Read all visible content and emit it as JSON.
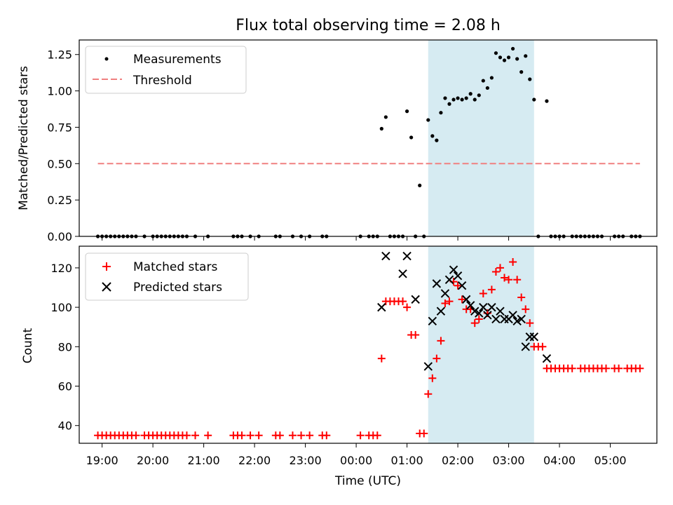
{
  "title": "Flux total observing time = 2.08 h",
  "chart_data": [
    {
      "type": "scatter",
      "ylabel": "Matched/Predicted stars",
      "xlim": [
        "18:33",
        "05:55"
      ],
      "ylim": [
        0,
        1.35
      ],
      "yticks": [
        "0.00",
        "0.25",
        "0.50",
        "0.75",
        "1.00",
        "1.25"
      ],
      "legend_position": "top-left",
      "shaded_interval": {
        "start": "01:25",
        "end": "03:30",
        "color": "#add8e6"
      },
      "series": [
        {
          "name": "Measurements",
          "color": "#000000",
          "marker": "dot",
          "points": [
            [
              "18:55",
              0
            ],
            [
              "19:00",
              0
            ],
            [
              "19:05",
              0
            ],
            [
              "19:10",
              0
            ],
            [
              "19:15",
              0
            ],
            [
              "19:20",
              0
            ],
            [
              "19:25",
              0
            ],
            [
              "19:30",
              0
            ],
            [
              "19:35",
              0
            ],
            [
              "19:40",
              0
            ],
            [
              "19:50",
              0
            ],
            [
              "20:00",
              0
            ],
            [
              "20:05",
              0
            ],
            [
              "20:10",
              0
            ],
            [
              "20:15",
              0
            ],
            [
              "20:20",
              0
            ],
            [
              "20:25",
              0
            ],
            [
              "20:30",
              0
            ],
            [
              "20:35",
              0
            ],
            [
              "20:40",
              0
            ],
            [
              "20:50",
              0
            ],
            [
              "21:05",
              0
            ],
            [
              "21:35",
              0
            ],
            [
              "21:40",
              0
            ],
            [
              "21:45",
              0
            ],
            [
              "21:55",
              0
            ],
            [
              "22:05",
              0
            ],
            [
              "22:25",
              0
            ],
            [
              "22:30",
              0
            ],
            [
              "22:45",
              0
            ],
            [
              "22:55",
              0
            ],
            [
              "23:05",
              0
            ],
            [
              "23:20",
              0
            ],
            [
              "23:25",
              0
            ],
            [
              "00:05",
              0
            ],
            [
              "00:15",
              0
            ],
            [
              "00:20",
              0
            ],
            [
              "00:25",
              0
            ],
            [
              "00:30",
              0.74
            ],
            [
              "00:35",
              0.82
            ],
            [
              "00:40",
              0
            ],
            [
              "00:45",
              0
            ],
            [
              "00:50",
              0
            ],
            [
              "00:55",
              0
            ],
            [
              "01:00",
              0.86
            ],
            [
              "01:05",
              0.68
            ],
            [
              "01:10",
              0
            ],
            [
              "01:15",
              0.35
            ],
            [
              "01:20",
              0
            ],
            [
              "01:25",
              0.8
            ],
            [
              "01:30",
              0.69
            ],
            [
              "01:35",
              0.66
            ],
            [
              "01:40",
              0.85
            ],
            [
              "01:45",
              0.95
            ],
            [
              "01:50",
              0.91
            ],
            [
              "01:55",
              0.94
            ],
            [
              "02:00",
              0.95
            ],
            [
              "02:05",
              0.94
            ],
            [
              "02:10",
              0.95
            ],
            [
              "02:15",
              0.98
            ],
            [
              "02:20",
              0.94
            ],
            [
              "02:25",
              0.97
            ],
            [
              "02:30",
              1.07
            ],
            [
              "02:35",
              1.02
            ],
            [
              "02:40",
              1.09
            ],
            [
              "02:45",
              1.26
            ],
            [
              "02:50",
              1.23
            ],
            [
              "02:55",
              1.21
            ],
            [
              "03:00",
              1.23
            ],
            [
              "03:05",
              1.29
            ],
            [
              "03:10",
              1.22
            ],
            [
              "03:15",
              1.13
            ],
            [
              "03:20",
              1.24
            ],
            [
              "03:25",
              1.08
            ],
            [
              "03:30",
              0.94
            ],
            [
              "03:35",
              0
            ],
            [
              "03:45",
              0.93
            ],
            [
              "03:50",
              0
            ],
            [
              "03:55",
              0
            ],
            [
              "04:00",
              0
            ],
            [
              "04:05",
              0
            ],
            [
              "04:15",
              0
            ],
            [
              "04:20",
              0
            ],
            [
              "04:25",
              0
            ],
            [
              "04:30",
              0
            ],
            [
              "04:35",
              0
            ],
            [
              "04:40",
              0
            ],
            [
              "04:45",
              0
            ],
            [
              "04:50",
              0
            ],
            [
              "05:05",
              0
            ],
            [
              "05:10",
              0
            ],
            [
              "05:15",
              0
            ],
            [
              "05:25",
              0
            ],
            [
              "05:30",
              0
            ],
            [
              "05:35",
              0
            ]
          ]
        },
        {
          "name": "Threshold",
          "color": "#f08080",
          "style": "dashed",
          "points": [
            [
              "18:55",
              0.5
            ],
            [
              "05:35",
              0.5
            ]
          ]
        }
      ]
    },
    {
      "type": "scatter",
      "xlabel": "Time (UTC)",
      "ylabel": "Count",
      "xticks": [
        "19:00",
        "20:00",
        "21:00",
        "22:00",
        "23:00",
        "00:00",
        "01:00",
        "02:00",
        "03:00",
        "04:00",
        "05:00"
      ],
      "xlim": [
        "18:33",
        "05:55"
      ],
      "ylim": [
        31,
        131
      ],
      "yticks": [
        "40",
        "60",
        "80",
        "100",
        "120"
      ],
      "legend_position": "top-left",
      "shaded_interval": {
        "start": "01:25",
        "end": "03:30",
        "color": "#add8e6"
      },
      "series": [
        {
          "name": "Matched stars",
          "color": "#ff0000",
          "marker": "plus",
          "points": [
            [
              "18:55",
              35
            ],
            [
              "19:00",
              35
            ],
            [
              "19:05",
              35
            ],
            [
              "19:10",
              35
            ],
            [
              "19:15",
              35
            ],
            [
              "19:20",
              35
            ],
            [
              "19:25",
              35
            ],
            [
              "19:30",
              35
            ],
            [
              "19:35",
              35
            ],
            [
              "19:40",
              35
            ],
            [
              "19:50",
              35
            ],
            [
              "19:55",
              35
            ],
            [
              "20:00",
              35
            ],
            [
              "20:05",
              35
            ],
            [
              "20:10",
              35
            ],
            [
              "20:15",
              35
            ],
            [
              "20:20",
              35
            ],
            [
              "20:25",
              35
            ],
            [
              "20:30",
              35
            ],
            [
              "20:35",
              35
            ],
            [
              "20:40",
              35
            ],
            [
              "20:50",
              35
            ],
            [
              "21:05",
              35
            ],
            [
              "21:35",
              35
            ],
            [
              "21:40",
              35
            ],
            [
              "21:45",
              35
            ],
            [
              "21:55",
              35
            ],
            [
              "22:05",
              35
            ],
            [
              "22:25",
              35
            ],
            [
              "22:30",
              35
            ],
            [
              "22:45",
              35
            ],
            [
              "22:55",
              35
            ],
            [
              "23:05",
              35
            ],
            [
              "23:20",
              35
            ],
            [
              "23:25",
              35
            ],
            [
              "00:05",
              35
            ],
            [
              "00:15",
              35
            ],
            [
              "00:20",
              35
            ],
            [
              "00:25",
              35
            ],
            [
              "00:30",
              74
            ],
            [
              "00:35",
              103
            ],
            [
              "00:40",
              103
            ],
            [
              "00:45",
              103
            ],
            [
              "00:50",
              103
            ],
            [
              "00:55",
              103
            ],
            [
              "01:00",
              100
            ],
            [
              "01:05",
              86
            ],
            [
              "01:10",
              86
            ],
            [
              "01:15",
              36
            ],
            [
              "01:20",
              36
            ],
            [
              "01:25",
              56
            ],
            [
              "01:30",
              64
            ],
            [
              "01:35",
              74
            ],
            [
              "01:40",
              83
            ],
            [
              "01:45",
              102
            ],
            [
              "01:50",
              103
            ],
            [
              "01:55",
              113
            ],
            [
              "02:00",
              111
            ],
            [
              "02:05",
              104
            ],
            [
              "02:10",
              99
            ],
            [
              "02:15",
              99
            ],
            [
              "02:20",
              92
            ],
            [
              "02:25",
              94
            ],
            [
              "02:30",
              107
            ],
            [
              "02:35",
              97
            ],
            [
              "02:40",
              109
            ],
            [
              "02:45",
              118
            ],
            [
              "02:50",
              120
            ],
            [
              "02:55",
              115
            ],
            [
              "03:00",
              114
            ],
            [
              "03:05",
              123
            ],
            [
              "03:10",
              114
            ],
            [
              "03:15",
              105
            ],
            [
              "03:20",
              99
            ],
            [
              "03:25",
              92
            ],
            [
              "03:30",
              80
            ],
            [
              "03:35",
              80
            ],
            [
              "03:40",
              80
            ],
            [
              "03:45",
              69
            ],
            [
              "03:50",
              69
            ],
            [
              "03:55",
              69
            ],
            [
              "04:00",
              69
            ],
            [
              "04:05",
              69
            ],
            [
              "04:10",
              69
            ],
            [
              "04:15",
              69
            ],
            [
              "04:25",
              69
            ],
            [
              "04:30",
              69
            ],
            [
              "04:35",
              69
            ],
            [
              "04:40",
              69
            ],
            [
              "04:45",
              69
            ],
            [
              "04:50",
              69
            ],
            [
              "04:55",
              69
            ],
            [
              "05:05",
              69
            ],
            [
              "05:10",
              69
            ],
            [
              "05:20",
              69
            ],
            [
              "05:25",
              69
            ],
            [
              "05:30",
              69
            ],
            [
              "05:35",
              69
            ]
          ]
        },
        {
          "name": "Predicted stars",
          "color": "#000000",
          "marker": "x",
          "points": [
            [
              "00:30",
              100
            ],
            [
              "00:35",
              126
            ],
            [
              "00:55",
              117
            ],
            [
              "01:00",
              126
            ],
            [
              "01:10",
              104
            ],
            [
              "01:25",
              70
            ],
            [
              "01:30",
              93
            ],
            [
              "01:35",
              112
            ],
            [
              "01:40",
              98
            ],
            [
              "01:45",
              107
            ],
            [
              "01:50",
              114
            ],
            [
              "01:55",
              119
            ],
            [
              "02:00",
              116
            ],
            [
              "02:05",
              111
            ],
            [
              "02:10",
              104
            ],
            [
              "02:15",
              101
            ],
            [
              "02:20",
              98
            ],
            [
              "02:25",
              97
            ],
            [
              "02:30",
              100
            ],
            [
              "02:35",
              96
            ],
            [
              "02:40",
              100
            ],
            [
              "02:45",
              94
            ],
            [
              "02:50",
              98
            ],
            [
              "02:55",
              94
            ],
            [
              "03:00",
              94
            ],
            [
              "03:05",
              96
            ],
            [
              "03:10",
              93
            ],
            [
              "03:15",
              94
            ],
            [
              "03:20",
              80
            ],
            [
              "03:25",
              85
            ],
            [
              "03:30",
              85
            ],
            [
              "03:45",
              74
            ]
          ]
        }
      ]
    }
  ]
}
